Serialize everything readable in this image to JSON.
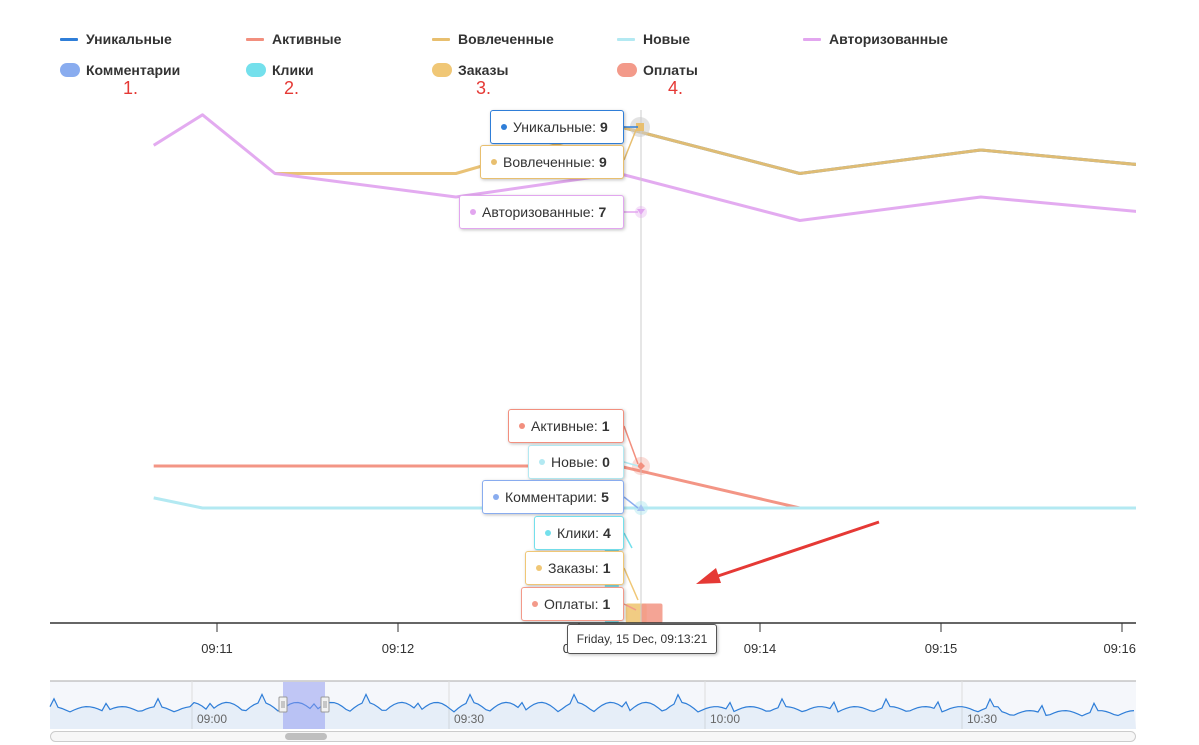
{
  "legend": {
    "items": [
      {
        "label": "Уникальные",
        "color": "#2f7ed8",
        "symbol": "line"
      },
      {
        "label": "Активные",
        "color": "#f28f7e",
        "symbol": "line"
      },
      {
        "label": "Вовлеченные",
        "color": "#e8bf6f",
        "symbol": "line"
      },
      {
        "label": "Новые",
        "color": "#b3e9f2",
        "symbol": "line"
      },
      {
        "label": "Авторизованные",
        "color": "#e2a6ef",
        "symbol": "line"
      },
      {
        "label": "Комментарии",
        "color": "#89acef",
        "symbol": "column"
      },
      {
        "label": "Клики",
        "color": "#74e0ec",
        "symbol": "column"
      },
      {
        "label": "Заказы",
        "color": "#f0c776",
        "symbol": "column"
      },
      {
        "label": "Оплаты",
        "color": "#f39a8a",
        "symbol": "column"
      }
    ]
  },
  "annotations": [
    "1.",
    "2.",
    "3.",
    "4."
  ],
  "chart_data": {
    "type": "line",
    "x_ticks": [
      "09:11",
      "09:12",
      "09:13",
      "09:14",
      "09:15",
      "09:16"
    ],
    "x_tick_minutes": [
      11,
      12,
      13,
      14,
      15,
      16
    ],
    "x_range_minutes": [
      10.65,
      16.2
    ],
    "y_upper_range": [
      0,
      10
    ],
    "y_lower_range": [
      0,
      5
    ],
    "series": [
      {
        "name": "Уникальные",
        "color": "#2f7ed8",
        "axis": "upper",
        "x": [
          13.22,
          14.22,
          15.22,
          16.2
        ],
        "y": [
          9,
          7,
          8,
          7.3
        ]
      },
      {
        "name": "Вовлеченные",
        "color": "#e8bf6f",
        "axis": "upper",
        "x": [
          11.32,
          12.32,
          13.22,
          14.22,
          15.22,
          16.2
        ],
        "y": [
          7,
          7,
          9,
          7,
          8,
          7.3
        ]
      },
      {
        "name": "Авторизованные",
        "color": "#e2a6ef",
        "axis": "upper",
        "x": [
          10.65,
          10.92,
          11.32,
          12.32,
          13.22,
          14.22,
          15.22,
          16.2
        ],
        "y": [
          8.2,
          9.5,
          7,
          6,
          7,
          5,
          6,
          5.3
        ]
      },
      {
        "name": "Активные",
        "color": "#f28f7e",
        "axis": "lower",
        "x": [
          10.65,
          12.32,
          13.22,
          14.22,
          16.2
        ],
        "y": [
          1,
          1,
          1,
          0,
          0
        ]
      },
      {
        "name": "Новые",
        "color": "#b3e9f2",
        "axis": "lower",
        "x": [
          10.65,
          10.92,
          16.2
        ],
        "y": [
          0.24,
          0,
          0
        ]
      }
    ],
    "columns": [
      {
        "name": "Клики",
        "color": "#74e0ec",
        "x": 13.22,
        "y": 4
      },
      {
        "name": "Заказы",
        "color": "#f0c776",
        "x": 13.28,
        "y": 1
      },
      {
        "name": "Оплаты",
        "color": "#f39a8a",
        "x": 13.34,
        "y": 1
      }
    ]
  },
  "tooltips": [
    {
      "label": "Уникальные:",
      "value": "9",
      "color": "#2f7ed8"
    },
    {
      "label": "Вовлеченные:",
      "value": "9",
      "color": "#e8bf6f"
    },
    {
      "label": "Авторизованные:",
      "value": "7",
      "color": "#e2a6ef"
    },
    {
      "label": "Активные:",
      "value": "1",
      "color": "#f28f7e"
    },
    {
      "label": "Новые:",
      "value": "0",
      "color": "#b3e9f2"
    },
    {
      "label": "Комментарии:",
      "value": "5",
      "color": "#89acef"
    },
    {
      "label": "Клики:",
      "value": "4",
      "color": "#74e0ec"
    },
    {
      "label": "Заказы:",
      "value": "1",
      "color": "#f0c776"
    },
    {
      "label": "Оплаты:",
      "value": "1",
      "color": "#f39a8a"
    }
  ],
  "time_tooltip": "Friday, 15 Dec, 09:13:21",
  "navigator": {
    "tick_labels": [
      "09:00",
      "09:30",
      "10:00",
      "10:30"
    ],
    "series_color": "#2f7ed8",
    "selection_color": "#8c96f0"
  },
  "arrow_color": "#e53935"
}
